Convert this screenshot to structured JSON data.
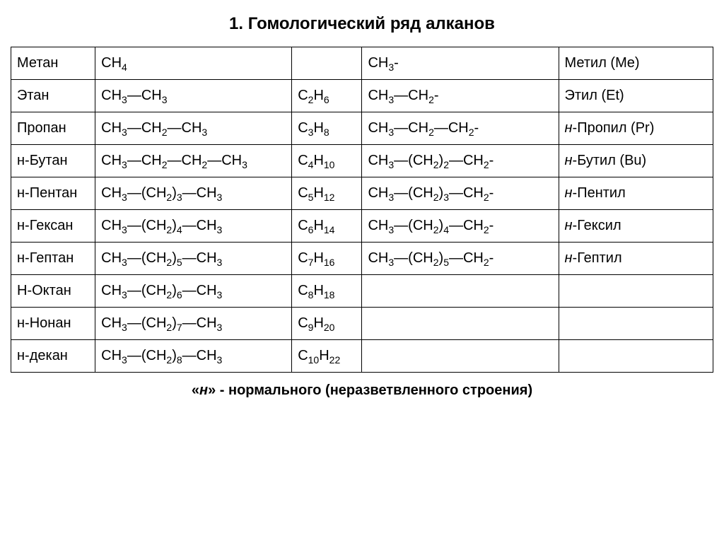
{
  "title": "1. Гомологический ряд алканов",
  "footer_prefix": "«",
  "footer_n": "н",
  "footer_suffix": "» - нормального (неразветвленного строения)",
  "columns": 5,
  "rows": [
    {
      "name": "Метан",
      "structure": "CH<sub>4</sub>",
      "formula": "",
      "radical_structure": "CH<sub>3</sub>-",
      "radical_name": "Метил (Me)"
    },
    {
      "name": "Этан",
      "structure": "CH<sub>3</sub>—CH<sub>3</sub>",
      "formula": "C<sub>2</sub>H<sub>6</sub>",
      "radical_structure": "CH<sub>3</sub>—CH<sub>2</sub>-",
      "radical_name": "Этил (Et)"
    },
    {
      "name": "Пропан",
      "structure": "CH<sub>3</sub>—CH<sub>2</sub>—CH<sub>3</sub>",
      "formula": "C<sub>3</sub>H<sub>8</sub>",
      "radical_structure": "CH<sub>3</sub>—CH<sub>2</sub>—CH<sub>2</sub>-",
      "radical_name": "<span class=\"ital\">н</span>-Пропил (Pr)"
    },
    {
      "name": "н-Бутан",
      "structure": "CH<sub>3</sub>—CH<sub>2</sub>—CH<sub>2</sub>—CH<sub>3</sub>",
      "formula": "C<sub>4</sub>H<sub>10</sub>",
      "radical_structure": "CH<sub>3</sub>—(CH<sub>2</sub>)<sub>2</sub>—CH<sub>2</sub>-",
      "radical_name": "<span class=\"ital\">н</span>-Бутил (Bu)"
    },
    {
      "name": "н-Пентан",
      "structure": "CH<sub>3</sub>—(CH<sub>2</sub>)<sub>3</sub>—CH<sub>3</sub>",
      "formula": "C<sub>5</sub>H<sub>12</sub>",
      "radical_structure": "CH<sub>3</sub>—(CH<sub>2</sub>)<sub>3</sub>—CH<sub>2</sub>-",
      "radical_name": "<span class=\"ital\">н</span>-Пентил"
    },
    {
      "name": "н-Гексан",
      "structure": "CH<sub>3</sub>—(CH<sub>2</sub>)<sub>4</sub>—CH<sub>3</sub>",
      "formula": "C<sub>6</sub>H<sub>14</sub>",
      "radical_structure": "CH<sub>3</sub>—(CH<sub>2</sub>)<sub>4</sub>—CH<sub>2</sub>-",
      "radical_name": "<span class=\"ital\">н</span>-Гексил"
    },
    {
      "name": "н-Гептан",
      "structure": "CH<sub>3</sub>—(CH<sub>2</sub>)<sub>5</sub>—CH<sub>3</sub>",
      "formula": "C<sub>7</sub>H<sub>16</sub>",
      "radical_structure": "CH<sub>3</sub>—(CH<sub>2</sub>)<sub>5</sub>—CH<sub>2</sub>-",
      "radical_name": "<span class=\"ital\">н</span>-Гептил"
    },
    {
      "name": "Н-Октан",
      "structure": "CH<sub>3</sub>—(CH<sub>2</sub>)<sub>6</sub>—CH<sub>3</sub>",
      "formula": "C<sub>8</sub>H<sub>18</sub>",
      "radical_structure": "",
      "radical_name": ""
    },
    {
      "name": "н-Нонан",
      "structure": "CH<sub>3</sub>—(CH<sub>2</sub>)<sub>7</sub>—CH<sub>3</sub>",
      "formula": "C<sub>9</sub>H<sub>20</sub>",
      "radical_structure": "",
      "radical_name": ""
    },
    {
      "name": "н-декан",
      "structure": "CH<sub>3</sub>—(CH<sub>2</sub>)<sub>8</sub>—CH<sub>3</sub>",
      "formula": "C<sub>10</sub>H<sub>22</sub>",
      "radical_structure": "",
      "radical_name": ""
    }
  ]
}
